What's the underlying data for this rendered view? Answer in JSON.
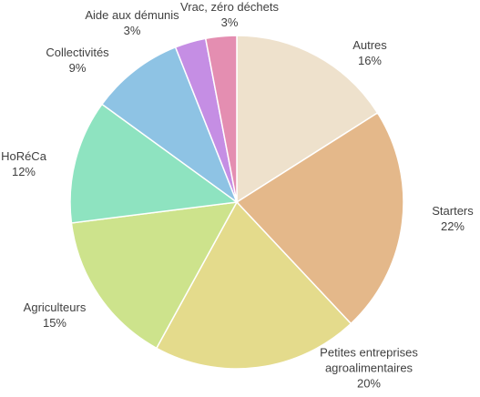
{
  "chart_data": {
    "type": "pie",
    "title": "",
    "start_angle_deg": 0,
    "direction": "clockwise",
    "legend": "none",
    "labels": "outside",
    "slices": [
      {
        "label": "Autres",
        "value": 16,
        "value_label": "16%",
        "color": "#EEE1CC"
      },
      {
        "label": "Starters",
        "value": 22,
        "value_label": "22%",
        "color": "#E4B88A"
      },
      {
        "label": "Petites entreprises agroalimentaires",
        "value": 20,
        "value_label": "20%",
        "color": "#E4DB8C"
      },
      {
        "label": "Agriculteurs",
        "value": 15,
        "value_label": "15%",
        "color": "#CDE38C"
      },
      {
        "label": "HoRéCa",
        "value": 12,
        "value_label": "12%",
        "color": "#8EE3C0"
      },
      {
        "label": "Collectivités",
        "value": 9,
        "value_label": "9%",
        "color": "#8EC3E4"
      },
      {
        "label": "Aide aux démunis",
        "value": 3,
        "value_label": "3%",
        "color": "#C58EE4"
      },
      {
        "label": "Vrac, zéro déchets",
        "value": 3,
        "value_label": "3%",
        "color": "#E48EB1"
      }
    ]
  }
}
